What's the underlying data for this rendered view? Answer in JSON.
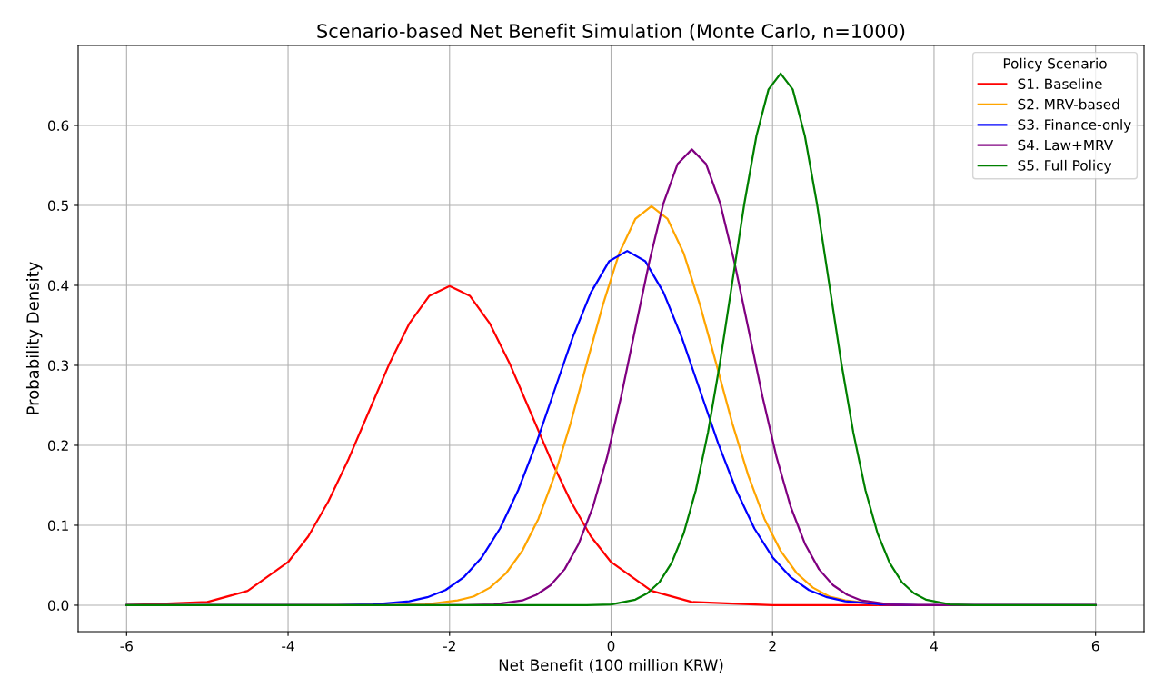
{
  "chart_data": {
    "type": "line",
    "title": "Scenario-based Net Benefit Simulation (Monte Carlo, n=1000)",
    "xlabel": "Net Benefit (100 million KRW)",
    "ylabel": "Probability Density",
    "legend_title": "Policy Scenario",
    "legend": "top right",
    "grid": true,
    "xlim": [
      -6.6,
      6.6
    ],
    "xticks": [
      -6,
      -4,
      -2,
      0,
      2,
      4,
      6
    ],
    "ylim": [
      -0.033,
      0.7
    ],
    "yticks": [
      {
        "value": 0,
        "label": "0.0"
      },
      0.1,
      0.2,
      0.3,
      0.4,
      0.5,
      0.6
    ],
    "series": [
      {
        "name": "S1. Baseline",
        "color": "#ff0000",
        "x": [
          -6,
          -5,
          -4.5,
          -4,
          -3.75,
          -3.5,
          -3.25,
          -3,
          -2.75,
          -2.5,
          -2.25,
          -2,
          -1.75,
          -1.5,
          -1.25,
          -1,
          -0.75,
          -0.5,
          -0.25,
          0,
          0.5,
          1,
          2,
          6
        ],
        "values": [
          0.0,
          0.004,
          0.018,
          0.054,
          0.086,
          0.13,
          0.183,
          0.242,
          0.301,
          0.352,
          0.387,
          0.399,
          0.387,
          0.352,
          0.301,
          0.242,
          0.183,
          0.13,
          0.086,
          0.054,
          0.018,
          0.004,
          0.0,
          0.0
        ]
      },
      {
        "name": "S2. MRV-based",
        "color": "#ffa500",
        "x": [
          -6,
          -2.7,
          -2.3,
          -1.9,
          -1.7,
          -1.5,
          -1.3,
          -1.1,
          -0.9,
          -0.7,
          -0.5,
          -0.3,
          -0.1,
          0.1,
          0.3,
          0.5,
          0.7,
          0.9,
          1.1,
          1.3,
          1.5,
          1.7,
          1.9,
          2.1,
          2.3,
          2.5,
          2.7,
          2.9,
          3.3
        ],
        "values": [
          0.0,
          0.0,
          0.001,
          0.006,
          0.011,
          0.022,
          0.04,
          0.068,
          0.108,
          0.162,
          0.228,
          0.303,
          0.376,
          0.44,
          0.483,
          0.499,
          0.483,
          0.44,
          0.376,
          0.303,
          0.228,
          0.162,
          0.108,
          0.068,
          0.04,
          0.022,
          0.011,
          0.006,
          0.001
        ]
      },
      {
        "name": "S3. Finance-only",
        "color": "#0000ff",
        "x": [
          -6,
          -3.4,
          -2.95,
          -2.5,
          -2.275,
          -2.05,
          -1.825,
          -1.6,
          -1.375,
          -1.15,
          -0.925,
          -0.7,
          -0.475,
          -0.25,
          -0.025,
          0.2,
          0.425,
          0.65,
          0.875,
          1.1,
          1.325,
          1.55,
          1.775,
          2.0,
          2.225,
          2.45,
          2.675,
          2.9,
          3.35,
          3.8,
          6
        ],
        "values": [
          0.0,
          0.0,
          0.001,
          0.005,
          0.01,
          0.019,
          0.035,
          0.06,
          0.096,
          0.144,
          0.203,
          0.269,
          0.335,
          0.391,
          0.43,
          0.443,
          0.43,
          0.391,
          0.335,
          0.269,
          0.203,
          0.144,
          0.096,
          0.06,
          0.035,
          0.019,
          0.01,
          0.005,
          0.001,
          0.0,
          0.0
        ]
      },
      {
        "name": "S4. Law+MRV",
        "color": "#800080",
        "x": [
          -6,
          -1.8,
          -1.45,
          -1.1,
          -0.925,
          -0.75,
          -0.575,
          -0.4,
          -0.225,
          -0.05,
          0.125,
          0.3,
          0.475,
          0.65,
          0.825,
          1,
          1.175,
          1.35,
          1.525,
          1.7,
          1.875,
          2.05,
          2.225,
          2.4,
          2.575,
          2.75,
          2.925,
          3.1,
          3.45,
          3.8,
          6
        ],
        "values": [
          0.0,
          0.0,
          0.001,
          0.006,
          0.013,
          0.025,
          0.045,
          0.077,
          0.123,
          0.185,
          0.261,
          0.346,
          0.43,
          0.503,
          0.552,
          0.57,
          0.552,
          0.503,
          0.43,
          0.346,
          0.261,
          0.185,
          0.123,
          0.077,
          0.045,
          0.025,
          0.013,
          0.006,
          0.001,
          0.0,
          0.0
        ]
      },
      {
        "name": "S5. Full Policy",
        "color": "#008000",
        "x": [
          -6,
          -0.3,
          0.0,
          0.3,
          0.45,
          0.6,
          0.75,
          0.9,
          1.05,
          1.2,
          1.35,
          1.5,
          1.65,
          1.8,
          1.95,
          2.1,
          2.25,
          2.4,
          2.55,
          2.7,
          2.85,
          3.0,
          3.15,
          3.3,
          3.45,
          3.6,
          3.75,
          3.9,
          4.2,
          4.5,
          6
        ],
        "values": [
          0.0,
          0.0,
          0.001,
          0.007,
          0.015,
          0.029,
          0.053,
          0.09,
          0.144,
          0.216,
          0.304,
          0.403,
          0.502,
          0.587,
          0.645,
          0.665,
          0.645,
          0.587,
          0.502,
          0.403,
          0.304,
          0.216,
          0.144,
          0.09,
          0.053,
          0.029,
          0.015,
          0.007,
          0.001,
          0.0,
          0.0
        ]
      }
    ]
  }
}
